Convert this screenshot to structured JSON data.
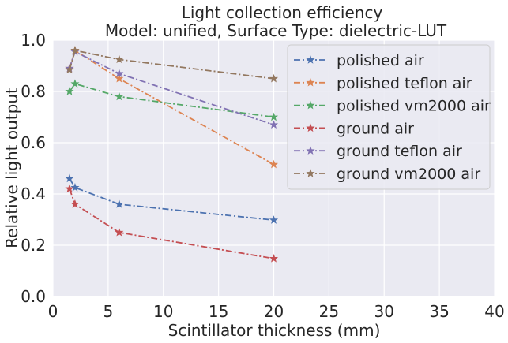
{
  "chart_data": {
    "type": "line",
    "title": "Light collection efficiency",
    "subtitle": "Model: unified, Surface Type: dielectric-LUT",
    "xlabel": "Scintillator thickness (mm)",
    "ylabel": "Relative light output",
    "xlim": [
      0,
      40
    ],
    "ylim": [
      0,
      1.0
    ],
    "xticks": [
      "0",
      "5",
      "10",
      "15",
      "20",
      "25",
      "30",
      "35",
      "40"
    ],
    "yticks": [
      "0.0",
      "0.2",
      "0.4",
      "0.6",
      "0.8",
      "1.0"
    ],
    "grid": true,
    "legend_position": "top-right",
    "marker": "star",
    "line_style": "dash-dot",
    "background": "#eaeaf2",
    "series": [
      {
        "name": "polished air",
        "color": "#4c72b0",
        "x": [
          1.5,
          2,
          6,
          20
        ],
        "y": [
          0.46,
          0.425,
          0.36,
          0.298
        ]
      },
      {
        "name": "polished teflon air",
        "color": "#dd8452",
        "x": [
          1.5,
          2,
          6,
          20
        ],
        "y": [
          0.89,
          0.96,
          0.85,
          0.515
        ]
      },
      {
        "name": "polished vm2000 air",
        "color": "#55a868",
        "x": [
          1.5,
          2,
          6,
          20
        ],
        "y": [
          0.8,
          0.83,
          0.78,
          0.7
        ]
      },
      {
        "name": "ground air",
        "color": "#c44e52",
        "x": [
          1.5,
          2,
          6,
          20
        ],
        "y": [
          0.42,
          0.36,
          0.25,
          0.148
        ]
      },
      {
        "name": "ground teflon air",
        "color": "#8172b3",
        "x": [
          1.5,
          2,
          6,
          20
        ],
        "y": [
          0.89,
          0.955,
          0.87,
          0.67
        ]
      },
      {
        "name": "ground vm2000 air",
        "color": "#937860",
        "x": [
          1.5,
          2,
          6,
          20
        ],
        "y": [
          0.885,
          0.96,
          0.925,
          0.85
        ]
      }
    ]
  }
}
